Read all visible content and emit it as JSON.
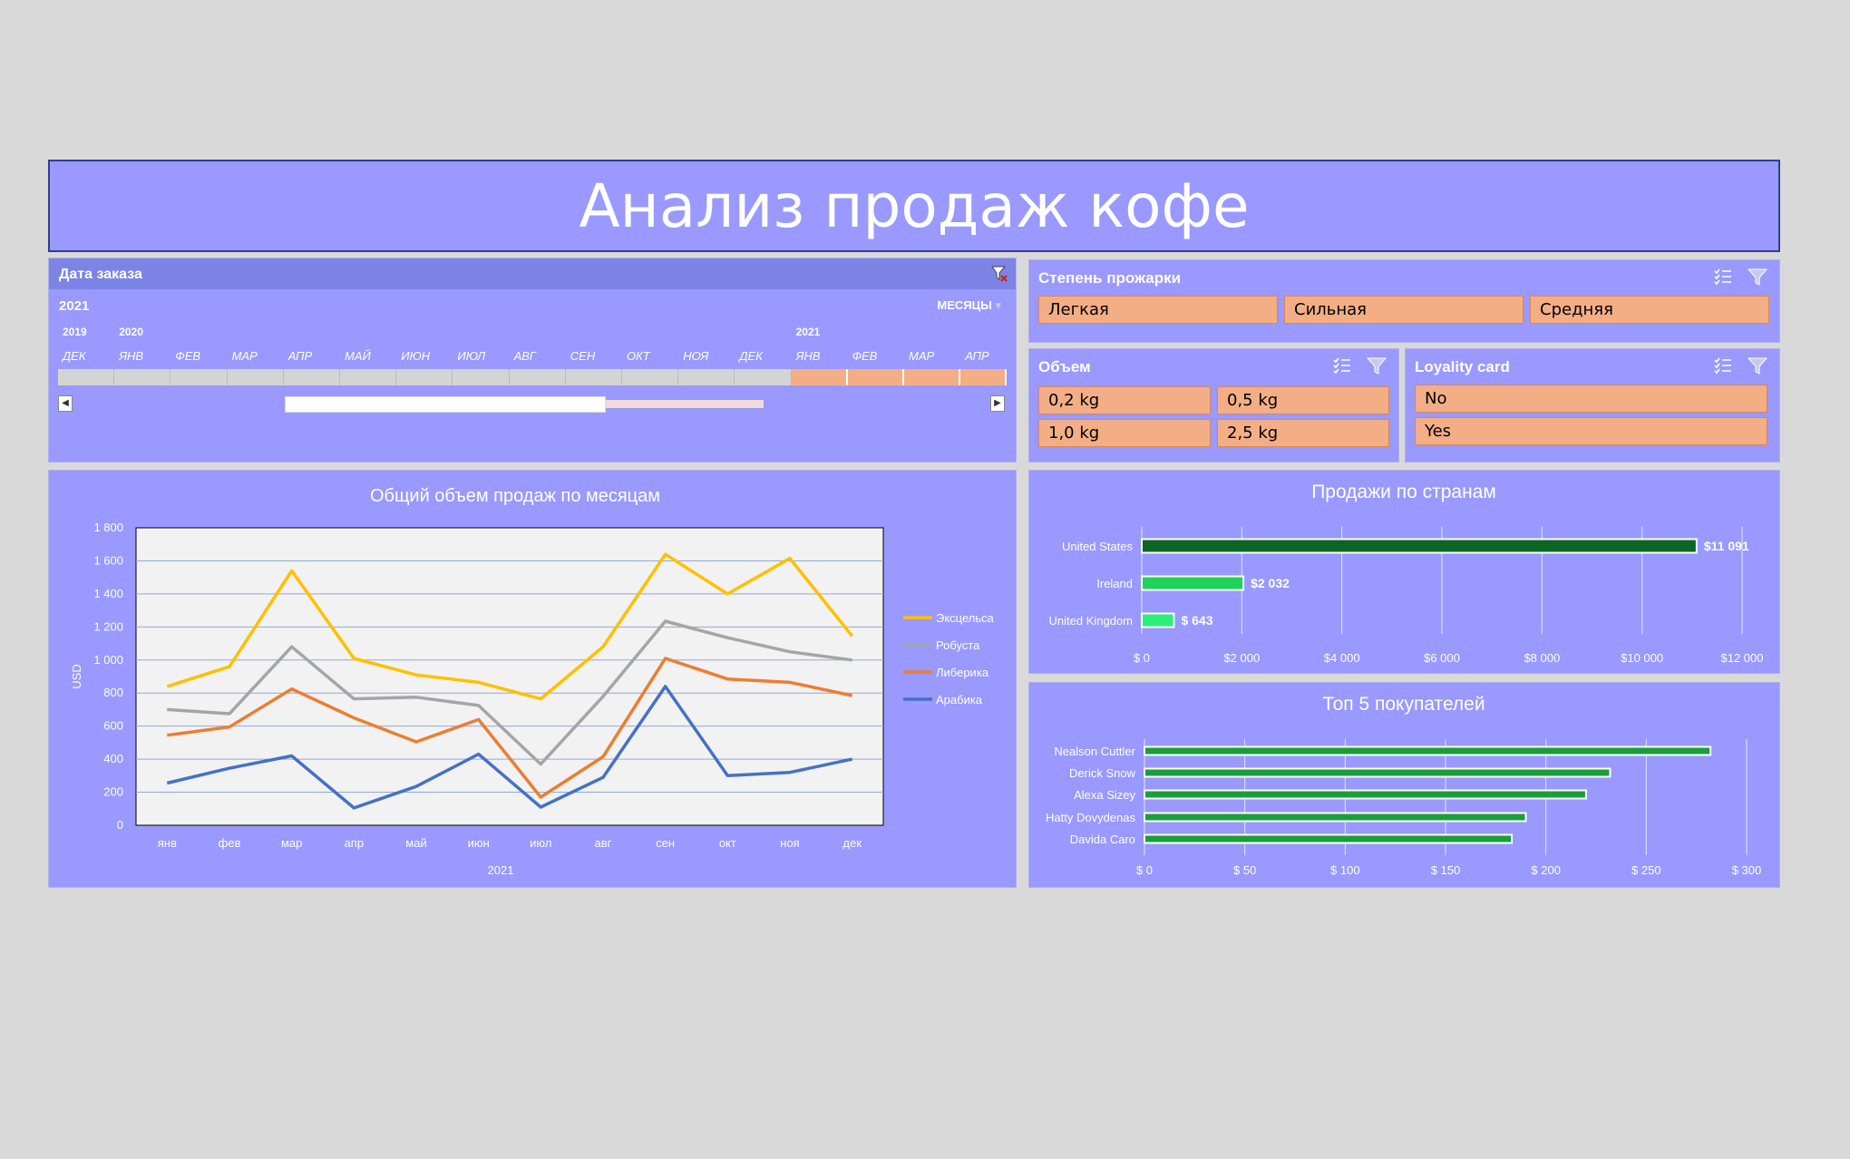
{
  "title": "Анализ продаж кофе",
  "timeline": {
    "header": "Дата заказа",
    "selected_year": "2021",
    "level": "МЕСЯЦЫ",
    "year_labels": [
      "2019",
      "2020",
      "2021"
    ],
    "months": [
      "ДЕК",
      "ЯНВ",
      "ФЕВ",
      "МАР",
      "АПР",
      "МАЙ",
      "ИЮН",
      "ИЮЛ",
      "АВГ",
      "СЕН",
      "ОКТ",
      "НОЯ",
      "ДЕК",
      "ЯНВ",
      "ФЕВ",
      "МАР",
      "АПР"
    ],
    "selected_from_index": 13
  },
  "slicers": {
    "roast": {
      "title": "Степень прожарки",
      "items": [
        "Легкая",
        "Сильная",
        "Средняя"
      ]
    },
    "volume": {
      "title": "Объем",
      "items": [
        "0,2 kg",
        "0,5 kg",
        "1,0 kg",
        "2,5 kg"
      ]
    },
    "loyalty": {
      "title": "Loyality card",
      "items": [
        "No",
        "Yes"
      ]
    }
  },
  "icons": {
    "multiselect": "multi-select-icon",
    "clear_filter": "clear-filter-icon"
  },
  "colors": {
    "panel": "#9999ff",
    "slicer_item": "#f4ae85",
    "excelsa": "#ffc000",
    "robusta": "#a5a5a5",
    "liberica": "#ed7d31",
    "arabica": "#4472c4",
    "bar_dark": "#0b6623",
    "bar_mid": "#1fd35a",
    "bar_light": "#2af07a",
    "bar_customer": "#1a9e3c"
  },
  "chart_data": [
    {
      "type": "line",
      "title": "Общий объем продаж по месяцам",
      "xlabel": "2021",
      "ylabel": "USD",
      "categories": [
        "янв",
        "фев",
        "мар",
        "апр",
        "май",
        "июн",
        "июл",
        "авг",
        "сен",
        "окт",
        "ноя",
        "дек"
      ],
      "ylim": [
        0,
        1800
      ],
      "yticks": [
        "0",
        "200",
        "400",
        "600",
        "800",
        "1 000",
        "1 200",
        "1 400",
        "1 600",
        "1 800"
      ],
      "legend_position": "right",
      "series": [
        {
          "name": "Эксцельса",
          "color": "#ffc000",
          "values": [
            840,
            960,
            1540,
            1010,
            910,
            865,
            765,
            1080,
            1640,
            1400,
            1615,
            1145
          ]
        },
        {
          "name": "Робуста",
          "color": "#a5a5a5",
          "values": [
            700,
            675,
            1080,
            765,
            775,
            725,
            370,
            780,
            1235,
            1135,
            1050,
            1000
          ]
        },
        {
          "name": "Либерика",
          "color": "#ed7d31",
          "values": [
            545,
            595,
            825,
            650,
            505,
            640,
            170,
            415,
            1010,
            885,
            865,
            785
          ]
        },
        {
          "name": "Арабика",
          "color": "#4472c4",
          "values": [
            255,
            345,
            420,
            105,
            235,
            430,
            110,
            290,
            840,
            300,
            320,
            400
          ]
        }
      ]
    },
    {
      "type": "bar",
      "title": "Продажи по странам",
      "categories": [
        "United States",
        "Ireland",
        "United Kingdom"
      ],
      "values": [
        11091,
        2032,
        643
      ],
      "data_labels": [
        "$11 091",
        "$2 032",
        "$ 643"
      ],
      "xlim": [
        0,
        12000
      ],
      "xticks": [
        "$ 0",
        "$2 000",
        "$4 000",
        "$6 000",
        "$8 000",
        "$10 000",
        "$12 000"
      ]
    },
    {
      "type": "bar",
      "title": "Топ 5 покупателей",
      "categories": [
        "Nealson Cuttler",
        "Derick Snow",
        "Alexa Sizey",
        "Hatty Dovydenas",
        "Davida Caro"
      ],
      "values": [
        282,
        232,
        220,
        190,
        183
      ],
      "xlim": [
        0,
        300
      ],
      "xticks": [
        "$ 0",
        "$ 50",
        "$ 100",
        "$ 150",
        "$ 200",
        "$ 250",
        "$ 300"
      ]
    }
  ]
}
